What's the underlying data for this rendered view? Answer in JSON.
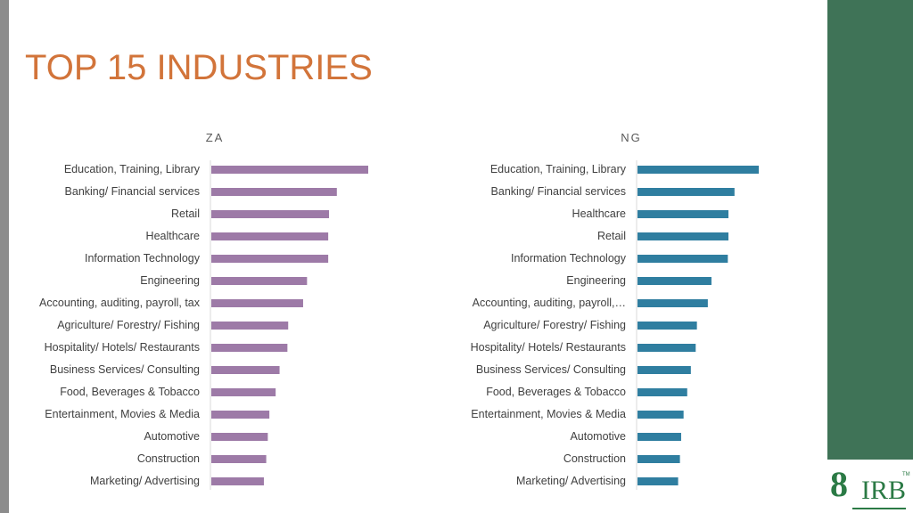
{
  "title": "TOP 15 INDUSTRIES",
  "colors": {
    "za": "#9d7aa7",
    "ng": "#2f7ea0",
    "title": "#d2743a",
    "side_band": "#3f7357"
  },
  "logo": {
    "word": "IRB",
    "mark": "8",
    "tm": "TM"
  },
  "chart_data": [
    {
      "type": "bar",
      "orientation": "horizontal",
      "title": "ZA",
      "categories": [
        "Education, Training, Library",
        "Banking/ Financial services",
        "Retail",
        "Healthcare",
        "Information Technology",
        "Engineering",
        "Accounting, auditing, payroll, tax",
        "Agriculture/ Forestry/ Fishing",
        "Hospitality/ Hotels/ Restaurants",
        "Business Services/ Consulting",
        "Food, Beverages & Tobacco",
        "Entertainment, Movies & Media",
        "Automotive",
        "Construction",
        "Marketing/ Advertising"
      ],
      "values": [
        100,
        80,
        75,
        74.5,
        74.5,
        61,
        58.5,
        49,
        48.5,
        43.5,
        41,
        37,
        36,
        35,
        33.5
      ],
      "xlim": [
        0,
        100
      ]
    },
    {
      "type": "bar",
      "orientation": "horizontal",
      "title": "NG",
      "categories": [
        "Education, Training, Library",
        "Banking/ Financial services",
        "Healthcare",
        "Retail",
        "Information Technology",
        "Engineering",
        "Accounting, auditing, payroll,…",
        "Agriculture/ Forestry/ Fishing",
        "Hospitality/ Hotels/ Restaurants",
        "Business Services/ Consulting",
        "Food, Beverages & Tobacco",
        "Entertainment, Movies & Media",
        "Automotive",
        "Construction",
        "Marketing/ Advertising"
      ],
      "values": [
        100,
        80,
        75,
        75,
        74.5,
        61,
        58,
        49,
        48,
        44,
        41,
        38,
        36,
        35,
        33.5
      ],
      "xlim": [
        0,
        100
      ]
    }
  ]
}
